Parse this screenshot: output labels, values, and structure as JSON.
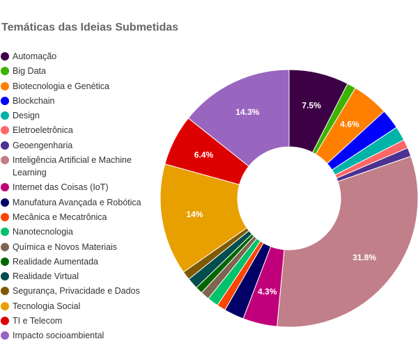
{
  "chart_data": {
    "type": "pie",
    "variant": "donut",
    "title": "Temáticas das Ideias Submetidas",
    "legend_position": "left",
    "unit": "%",
    "slices": [
      {
        "label": "Automação",
        "value": 7.5,
        "color": "#3c0045",
        "data_label": "7.5%"
      },
      {
        "label": "Big Data",
        "value": 1.1,
        "color": "#3cb300",
        "data_label": ""
      },
      {
        "label": "Biotecnologia e Genética",
        "value": 4.6,
        "color": "#ff7f00",
        "data_label": "4.6%"
      },
      {
        "label": "Blockchain",
        "value": 2.5,
        "color": "#0000ff",
        "data_label": ""
      },
      {
        "label": "Design",
        "value": 1.8,
        "color": "#00b3a8",
        "data_label": ""
      },
      {
        "label": "Eletroeletrônica",
        "value": 1.1,
        "color": "#ff6666",
        "data_label": ""
      },
      {
        "label": "Geoengenharia",
        "value": 1.1,
        "color": "#4b3291",
        "data_label": ""
      },
      {
        "label": "Inteligência Artificial e Machine Learning",
        "value": 31.8,
        "color": "#c17f89",
        "data_label": "31.8%"
      },
      {
        "label": "Internet das Coisas (IoT)",
        "value": 4.3,
        "color": "#c0007a",
        "data_label": "4.3%"
      },
      {
        "label": "Manufatura Avançada e Robótica",
        "value": 2.5,
        "color": "#000066",
        "data_label": ""
      },
      {
        "label": "Mecânica e Mecatrônica",
        "value": 1.1,
        "color": "#ff4400",
        "data_label": ""
      },
      {
        "label": "Nanotecnologia",
        "value": 1.4,
        "color": "#00c26a",
        "data_label": ""
      },
      {
        "label": "Química e Novos Materiais",
        "value": 1.1,
        "color": "#7f6450",
        "data_label": ""
      },
      {
        "label": "Realidade Aumentada",
        "value": 0.9,
        "color": "#006600",
        "data_label": ""
      },
      {
        "label": "Realidade Virtual",
        "value": 1.4,
        "color": "#004d4d",
        "data_label": ""
      },
      {
        "label": "Segurança, Privacidade e Dados",
        "value": 1.1,
        "color": "#7f5a00",
        "data_label": ""
      },
      {
        "label": "Tecnologia Social",
        "value": 14.0,
        "color": "#e89f00",
        "data_label": "14%"
      },
      {
        "label": "TI e Telecom",
        "value": 6.4,
        "color": "#dd0000",
        "data_label": "6.4%"
      },
      {
        "label": "Impacto socioambiental",
        "value": 14.3,
        "color": "#9966bf",
        "data_label": "14.3%"
      }
    ]
  }
}
